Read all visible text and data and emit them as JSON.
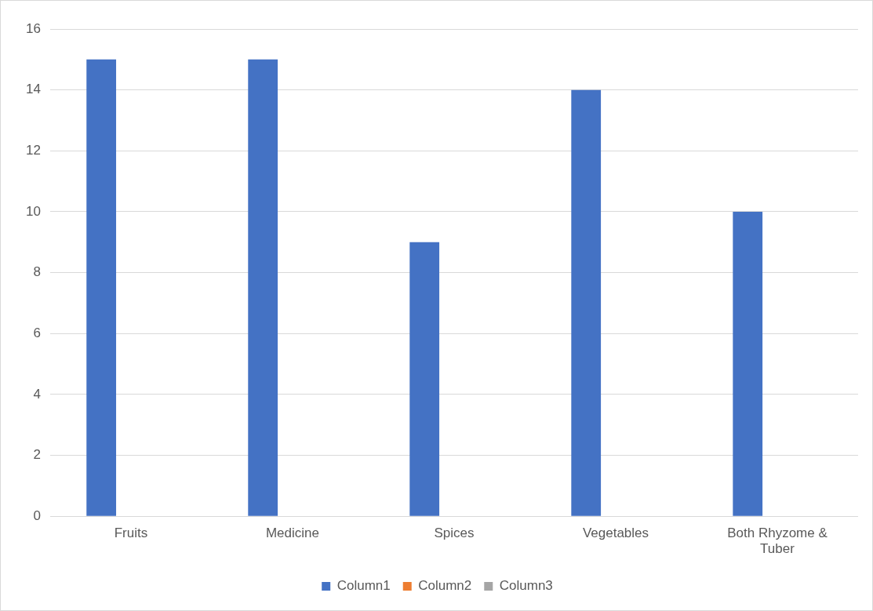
{
  "chart_data": {
    "type": "bar",
    "categories": [
      "Fruits",
      "Medicine",
      "Spices",
      "Vegetables",
      "Both Rhyzome & Tuber"
    ],
    "series": [
      {
        "name": "Column1",
        "color": "#4472c4",
        "values": [
          15,
          15,
          9,
          14,
          10
        ]
      },
      {
        "name": "Column2",
        "color": "#ed7d31",
        "values": [
          null,
          null,
          null,
          null,
          null
        ]
      },
      {
        "name": "Column3",
        "color": "#a5a5a5",
        "values": [
          null,
          null,
          null,
          null,
          null
        ]
      }
    ],
    "ylim": [
      0,
      16
    ],
    "yticks": [
      0,
      2,
      4,
      6,
      8,
      10,
      12,
      14,
      16
    ],
    "grid": "y",
    "legend": "bottom"
  }
}
